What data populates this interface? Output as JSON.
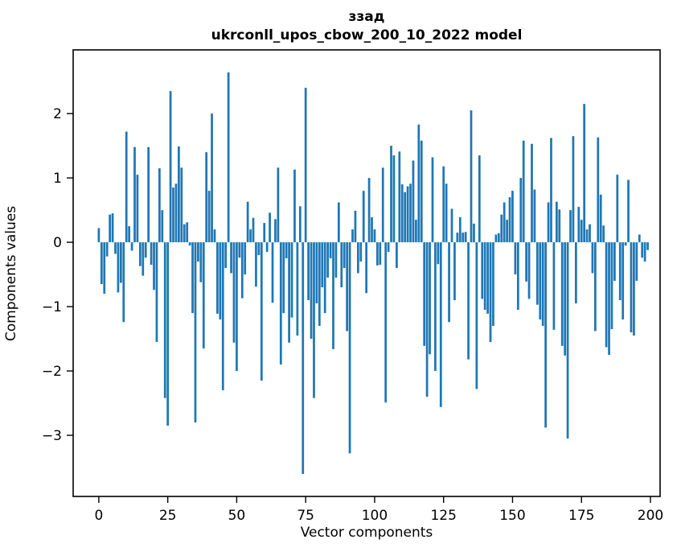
{
  "chart": {
    "title": "ззад",
    "subtitle": "ukrconll_upos_cbow_200_10_2022 model",
    "xlabel": "Vector components",
    "ylabel": "Components values"
  },
  "chart_data": {
    "type": "bar",
    "title": "ззад",
    "subtitle": "ukrconll_upos_cbow_200_10_2022 model",
    "xlabel": "Vector components",
    "ylabel": "Components values",
    "bar_color": "#1f77b4",
    "axis_color": "#000000",
    "background_color": "#ffffff",
    "grid": false,
    "legend": false,
    "n": 200,
    "x_ticks": [
      0,
      25,
      50,
      75,
      100,
      125,
      150,
      175,
      200
    ],
    "y_ticks": [
      -3,
      -2,
      -1,
      0,
      1,
      2
    ],
    "xlim": [
      -9.3,
      203.5
    ],
    "ylim": [
      -3.95,
      2.99
    ],
    "values": [
      0.22,
      -0.65,
      -0.8,
      -0.22,
      0.43,
      0.45,
      -0.18,
      -0.78,
      -0.63,
      -1.24,
      1.72,
      0.25,
      -0.13,
      1.48,
      1.05,
      -0.37,
      -0.52,
      -0.24,
      1.48,
      -0.35,
      -0.74,
      -1.55,
      1.15,
      0.5,
      -2.42,
      -2.85,
      2.35,
      0.85,
      0.91,
      1.49,
      1.16,
      0.28,
      0.31,
      -0.05,
      -1.1,
      -2.8,
      -0.3,
      -0.62,
      -1.65,
      1.4,
      0.8,
      2.0,
      0.2,
      -1.11,
      -1.2,
      -2.3,
      -0.4,
      2.64,
      -0.48,
      -1.56,
      -2.0,
      -0.24,
      -0.87,
      -0.5,
      0.63,
      0.2,
      0.38,
      -0.69,
      -0.2,
      -2.15,
      0.3,
      -0.15,
      0.46,
      -0.94,
      0.36,
      1.16,
      -1.9,
      -1.1,
      -0.25,
      -1.56,
      -1.17,
      1.13,
      -1.45,
      0.56,
      -3.6,
      2.4,
      -0.9,
      -1.5,
      -2.42,
      -0.95,
      -1.3,
      -0.7,
      -1.1,
      -0.55,
      -0.25,
      -1.66,
      -0.55,
      0.62,
      -0.7,
      -0.4,
      -1.38,
      -3.28,
      0.2,
      0.49,
      -0.48,
      -0.3,
      0.8,
      -0.79,
      1.0,
      0.39,
      0.2,
      -0.36,
      -0.35,
      1.16,
      -2.49,
      -0.15,
      1.5,
      1.35,
      -0.4,
      1.41,
      0.9,
      0.78,
      0.87,
      0.91,
      1.27,
      0.35,
      1.83,
      1.58,
      -1.61,
      -2.4,
      -1.74,
      1.32,
      -2.0,
      -0.34,
      -2.56,
      1.18,
      0.91,
      -1.24,
      0.52,
      -0.9,
      0.15,
      0.39,
      0.15,
      0.16,
      -1.82,
      2.05,
      0.29,
      -2.28,
      1.35,
      -0.88,
      -1.05,
      -1.11,
      -1.55,
      -1.3,
      0.12,
      0.14,
      0.43,
      0.62,
      0.35,
      0.7,
      0.8,
      -0.5,
      -1.05,
      1.0,
      1.58,
      -0.61,
      -0.88,
      1.53,
      0.82,
      -0.97,
      -1.2,
      -1.3,
      -2.88,
      0.62,
      1.62,
      -1.36,
      0.63,
      0.51,
      -1.61,
      -1.76,
      -3.05,
      0.5,
      1.65,
      -0.95,
      0.55,
      0.35,
      2.15,
      0.2,
      0.28,
      -0.48,
      -1.38,
      1.63,
      0.74,
      0.26,
      -1.63,
      -1.75,
      -1.35,
      -0.6,
      1.05,
      -0.9,
      -1.2,
      -0.05,
      0.97,
      -1.4,
      -1.45,
      -0.6,
      0.12,
      -0.24,
      -0.3,
      -0.12
    ]
  }
}
